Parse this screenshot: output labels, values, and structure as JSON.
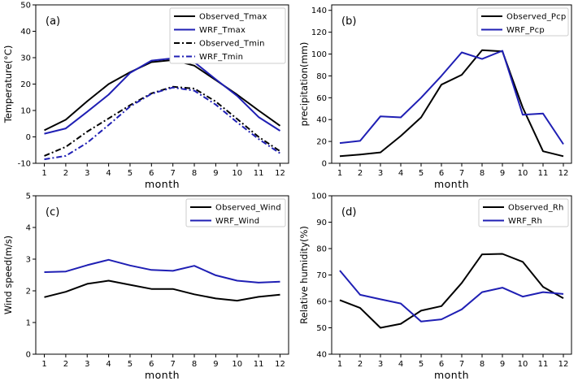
{
  "chart_data": [
    {
      "type": "line",
      "panel_label": "(a)",
      "xlabel": "month",
      "ylabel": "Temperature(°C)",
      "x": [
        1,
        2,
        3,
        4,
        5,
        6,
        7,
        8,
        9,
        10,
        11,
        12
      ],
      "xlim": [
        0.6,
        12.4
      ],
      "ylim": [
        -10,
        50
      ],
      "yticks": [
        -10,
        0,
        10,
        20,
        30,
        40,
        50
      ],
      "legend_loc": "upper-right",
      "series": [
        {
          "name": "Observed_Tmax",
          "color": "#000000",
          "dash": "solid",
          "values": [
            2.5,
            6.5,
            13.5,
            20,
            24.5,
            28.3,
            29.1,
            27,
            21.5,
            16,
            10,
            4.2
          ]
        },
        {
          "name": "WRF_Tmax",
          "color": "#1f1fb4",
          "dash": "solid",
          "values": [
            1.2,
            3.2,
            9.5,
            16,
            24.2,
            28.9,
            29.8,
            28.3,
            21.8,
            15.5,
            7.5,
            2.3
          ]
        },
        {
          "name": "Observed_Tmin",
          "color": "#000000",
          "dash": "dashdot",
          "values": [
            -7.2,
            -3.8,
            2,
            7,
            12,
            16.5,
            19,
            18.3,
            13.4,
            6.8,
            0,
            -5.4
          ]
        },
        {
          "name": "WRF_Tmin",
          "color": "#1f1fb4",
          "dash": "dashdot",
          "values": [
            -8.5,
            -7.2,
            -2.2,
            4.5,
            11.5,
            16.3,
            18.7,
            17.5,
            12.2,
            5.5,
            -0.8,
            -6.2
          ]
        }
      ]
    },
    {
      "type": "line",
      "panel_label": "(b)",
      "xlabel": "month",
      "ylabel": "precipitation(mm)",
      "x": [
        1,
        2,
        3,
        4,
        5,
        6,
        7,
        8,
        9,
        10,
        11,
        12
      ],
      "xlim": [
        0.6,
        12.4
      ],
      "ylim": [
        0,
        145
      ],
      "yticks": [
        0,
        20,
        40,
        60,
        80,
        100,
        120,
        140
      ],
      "legend_loc": "upper-right",
      "series": [
        {
          "name": "Observed_Pcp",
          "color": "#000000",
          "dash": "solid",
          "values": [
            6.5,
            8,
            10,
            25,
            42,
            72,
            81,
            103.5,
            102.5,
            51,
            11,
            6.5
          ]
        },
        {
          "name": "WRF_Pcp",
          "color": "#1f1fb4",
          "dash": "solid",
          "values": [
            18.5,
            20.5,
            43,
            42,
            60,
            80,
            101.5,
            95.5,
            103,
            44.5,
            45.5,
            17.5
          ]
        }
      ]
    },
    {
      "type": "line",
      "panel_label": "(c)",
      "xlabel": "month",
      "ylabel": "Wind speed(m/s)",
      "x": [
        1,
        2,
        3,
        4,
        5,
        6,
        7,
        8,
        9,
        10,
        11,
        12
      ],
      "xlim": [
        0.6,
        12.4
      ],
      "ylim": [
        0,
        5
      ],
      "yticks": [
        0,
        1,
        2,
        3,
        4,
        5
      ],
      "legend_loc": "upper-right",
      "series": [
        {
          "name": "Observed_Wind",
          "color": "#000000",
          "dash": "solid",
          "values": [
            1.8,
            1.97,
            2.22,
            2.32,
            2.19,
            2.06,
            2.06,
            1.89,
            1.76,
            1.69,
            1.81,
            1.88
          ]
        },
        {
          "name": "WRF_Wind",
          "color": "#1f1fb4",
          "dash": "solid",
          "values": [
            2.59,
            2.61,
            2.81,
            2.98,
            2.8,
            2.66,
            2.63,
            2.79,
            2.49,
            2.32,
            2.26,
            2.29
          ]
        }
      ]
    },
    {
      "type": "line",
      "panel_label": "(d)",
      "xlabel": "month",
      "ylabel": "Relative humidity(%)",
      "x": [
        1,
        2,
        3,
        4,
        5,
        6,
        7,
        8,
        9,
        10,
        11,
        12
      ],
      "xlim": [
        0.6,
        12.4
      ],
      "ylim": [
        40,
        100
      ],
      "yticks": [
        40,
        50,
        60,
        70,
        80,
        90,
        100
      ],
      "legend_loc": "upper-right",
      "series": [
        {
          "name": "Observed_Rh",
          "color": "#000000",
          "dash": "solid",
          "values": [
            60.5,
            57.5,
            50,
            51.5,
            56.5,
            58.2,
            67,
            77.8,
            78,
            75,
            65.5,
            61.2
          ]
        },
        {
          "name": "WRF_Rh",
          "color": "#1f1fb4",
          "dash": "solid",
          "values": [
            71.7,
            62.5,
            60.8,
            59.2,
            52.4,
            53.2,
            57,
            63.5,
            65.2,
            61.8,
            63.5,
            62.8
          ]
        }
      ]
    }
  ]
}
